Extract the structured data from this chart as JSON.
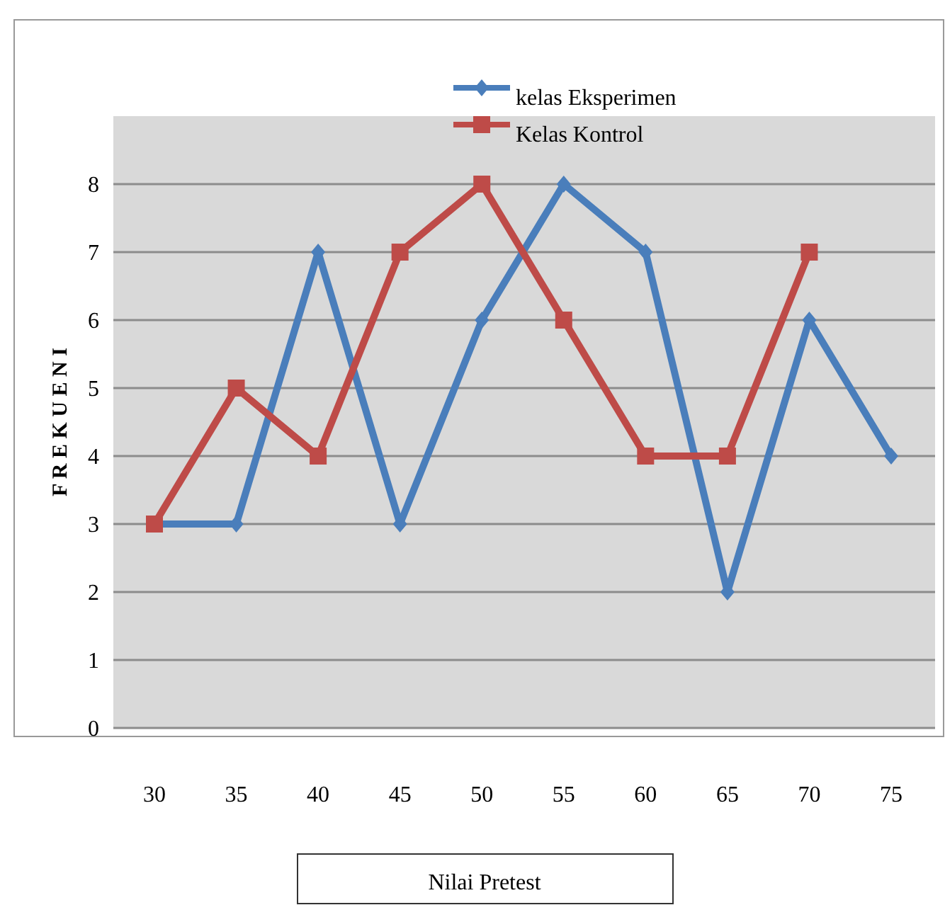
{
  "chart_data": {
    "type": "line",
    "xlabel": "Nilai Pretest",
    "ylabel": "F R E K U E N I",
    "categories": [
      "30",
      "35",
      "40",
      "45",
      "50",
      "55",
      "60",
      "65",
      "70",
      "75"
    ],
    "series": [
      {
        "name": "kelas Eksperimen",
        "color": "#4a7ebb",
        "marker": "diamond",
        "values": [
          3,
          3,
          7,
          3,
          6,
          8,
          7,
          2,
          6,
          4
        ]
      },
      {
        "name": "Kelas Kontrol",
        "color": "#be4b48",
        "marker": "square",
        "values": [
          3,
          5,
          4,
          7,
          8,
          6,
          4,
          4,
          7,
          null
        ]
      }
    ],
    "ylim": [
      0,
      9
    ],
    "yticks": [
      0,
      1,
      2,
      3,
      4,
      5,
      6,
      7,
      8
    ],
    "grid": "y",
    "legend": "top"
  }
}
